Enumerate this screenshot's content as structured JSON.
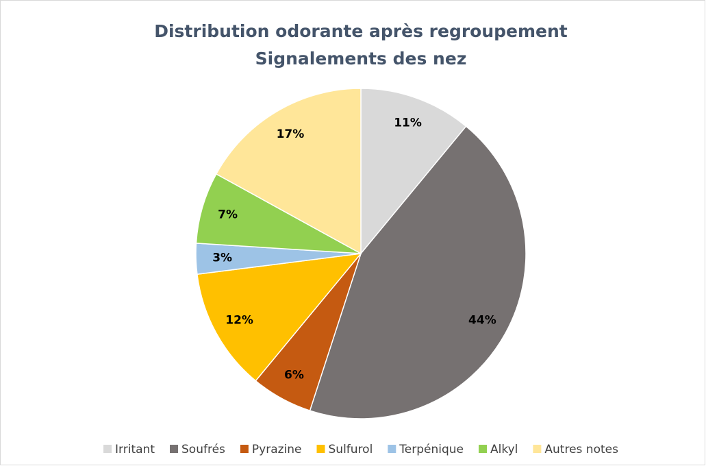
{
  "chart_data": {
    "type": "pie",
    "title": "Distribution odorante après regroupement",
    "subtitle": "Signalements des nez",
    "categories": [
      "Irritant",
      "Soufrés",
      "Pyrazine",
      "Sulfurol",
      "Terpénique",
      "Alkyl",
      "Autres notes"
    ],
    "values": [
      11,
      44,
      6,
      12,
      3,
      7,
      17
    ],
    "value_labels": [
      "11%",
      "44%",
      "6%",
      "12%",
      "3%",
      "7%",
      "17%"
    ],
    "colors": [
      "#d9d9d9",
      "#767171",
      "#c55a11",
      "#ffc000",
      "#9dc3e6",
      "#92d050",
      "#ffe699"
    ],
    "legend": "bottom"
  }
}
